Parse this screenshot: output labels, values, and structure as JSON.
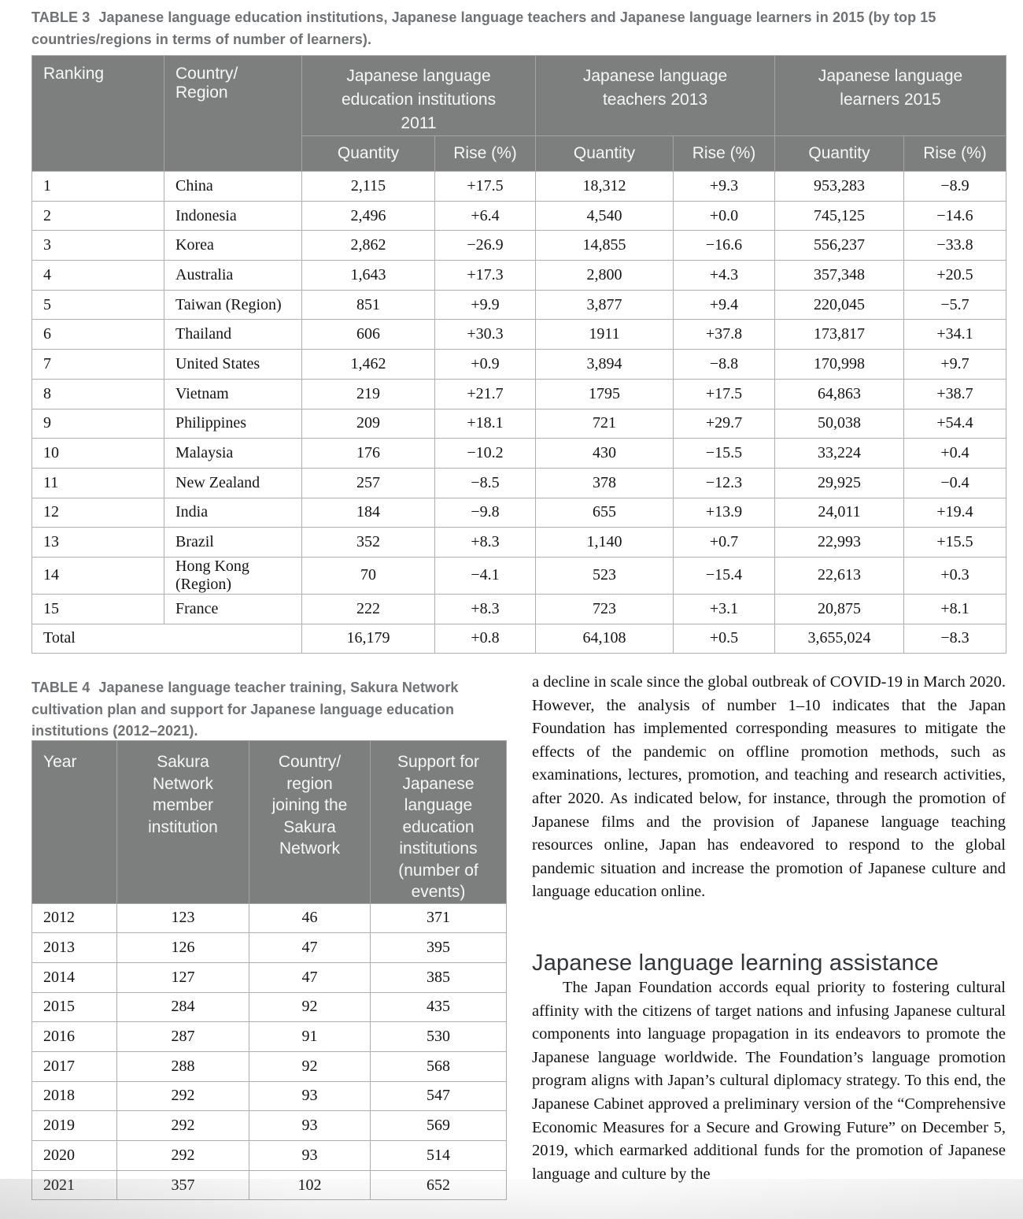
{
  "colors": {
    "table_header_bg": "#7d7f7e",
    "table_header_text": "#f7f7f7",
    "caption_text": "#6e7275",
    "heading_text": "#333639",
    "body_text": "#121212"
  },
  "table3": {
    "caption_label": "TABLE 3",
    "caption_rest": "Japanese language education institutions, Japanese language teachers and Japanese language learners in 2015 (by top 15 countries/regions in terms of number of learners).",
    "headers": {
      "ranking": "Ranking",
      "country": "Country/\nRegion",
      "group_institutions": "Japanese language\neducation institutions\n2011",
      "group_teachers": "Japanese language\nteachers 2013",
      "group_learners": "Japanese language\nlearners 2015",
      "quantity": "Quantity",
      "rise": "Rise (%)"
    },
    "rows": [
      [
        "1",
        "China",
        "2,115",
        "+17.5",
        "18,312",
        "+9.3",
        "953,283",
        "−8.9"
      ],
      [
        "2",
        "Indonesia",
        "2,496",
        "+6.4",
        "4,540",
        "+0.0",
        "745,125",
        "−14.6"
      ],
      [
        "3",
        "Korea",
        "2,862",
        "−26.9",
        "14,855",
        "−16.6",
        "556,237",
        "−33.8"
      ],
      [
        "4",
        "Australia",
        "1,643",
        "+17.3",
        "2,800",
        "+4.3",
        "357,348",
        "+20.5"
      ],
      [
        "5",
        "Taiwan (Region)",
        "851",
        "+9.9",
        "3,877",
        "+9.4",
        "220,045",
        "−5.7"
      ],
      [
        "6",
        "Thailand",
        "606",
        "+30.3",
        "1911",
        "+37.8",
        "173,817",
        "+34.1"
      ],
      [
        "7",
        "United States",
        "1,462",
        "+0.9",
        "3,894",
        "−8.8",
        "170,998",
        "+9.7"
      ],
      [
        "8",
        "Vietnam",
        "219",
        "+21.7",
        "1795",
        "+17.5",
        "64,863",
        "+38.7"
      ],
      [
        "9",
        "Philippines",
        "209",
        "+18.1",
        "721",
        "+29.7",
        "50,038",
        "+54.4"
      ],
      [
        "10",
        "Malaysia",
        "176",
        "−10.2",
        "430",
        "−15.5",
        "33,224",
        "+0.4"
      ],
      [
        "11",
        "New Zealand",
        "257",
        "−8.5",
        "378",
        "−12.3",
        "29,925",
        "−0.4"
      ],
      [
        "12",
        "India",
        "184",
        "−9.8",
        "655",
        "+13.9",
        "24,011",
        "+19.4"
      ],
      [
        "13",
        "Brazil",
        "352",
        "+8.3",
        "1,140",
        "+0.7",
        "22,993",
        "+15.5"
      ],
      [
        "14",
        "Hong Kong (Region)",
        "70",
        "−4.1",
        "523",
        "−15.4",
        "22,613",
        "+0.3"
      ],
      [
        "15",
        "France",
        "222",
        "+8.3",
        "723",
        "+3.1",
        "20,875",
        "+8.1"
      ]
    ],
    "total": {
      "label": "Total",
      "values": [
        "16,179",
        "+0.8",
        "64,108",
        "+0.5",
        "3,655,024",
        "−8.3"
      ]
    }
  },
  "table4": {
    "caption_label": "TABLE 4",
    "caption_rest": "Japanese language teacher training, Sakura Network cultivation plan and support for Japanese language education institutions (2012–2021).",
    "headers": [
      "Year",
      "Sakura\nNetwork\nmember\ninstitution",
      "Country/\nregion\njoining the\nSakura\nNetwork",
      "Support for\nJapanese\nlanguage\neducation\ninstitutions\n(number of\nevents)"
    ],
    "rows": [
      [
        "2012",
        "123",
        "46",
        "371"
      ],
      [
        "2013",
        "126",
        "47",
        "395"
      ],
      [
        "2014",
        "127",
        "47",
        "385"
      ],
      [
        "2015",
        "284",
        "92",
        "435"
      ],
      [
        "2016",
        "287",
        "91",
        "530"
      ],
      [
        "2017",
        "288",
        "92",
        "568"
      ],
      [
        "2018",
        "292",
        "93",
        "547"
      ],
      [
        "2019",
        "292",
        "93",
        "569"
      ],
      [
        "2020",
        "292",
        "93",
        "514"
      ],
      [
        "2021",
        "357",
        "102",
        "652"
      ]
    ]
  },
  "article": {
    "paragraph1": "a decline in scale since the global outbreak of COVID-19 in March 2020. However, the analysis of number 1–10 indicates that the Japan Foundation has implemented corresponding measures to mitigate the effects of the pandemic on offline promotion methods, such as examinations, lectures, promotion, and teaching and research activities, after 2020. As indicated below, for instance, through the promotion of Japanese films and the provision of Japanese language teaching resources online, Japan has endeavored to respond to the global pandemic situation and increase the promotion of Japanese culture and language education online.",
    "heading": "Japanese language learning assistance",
    "paragraph2": "The Japan Foundation accords equal priority to fostering cultural affinity with the citizens of target nations and infusing Japanese cultural components into language propagation in its endeavors to promote the Japanese language worldwide. The Foundation’s language promotion program aligns with Japan’s cultural diplomacy strategy. To this end, the Japanese Cabinet approved a preliminary version of the “Comprehensive Economic Measures for a Secure and Growing Future” on December 5, 2019, which earmarked additional funds for the promotion of Japanese language and culture by the"
  }
}
